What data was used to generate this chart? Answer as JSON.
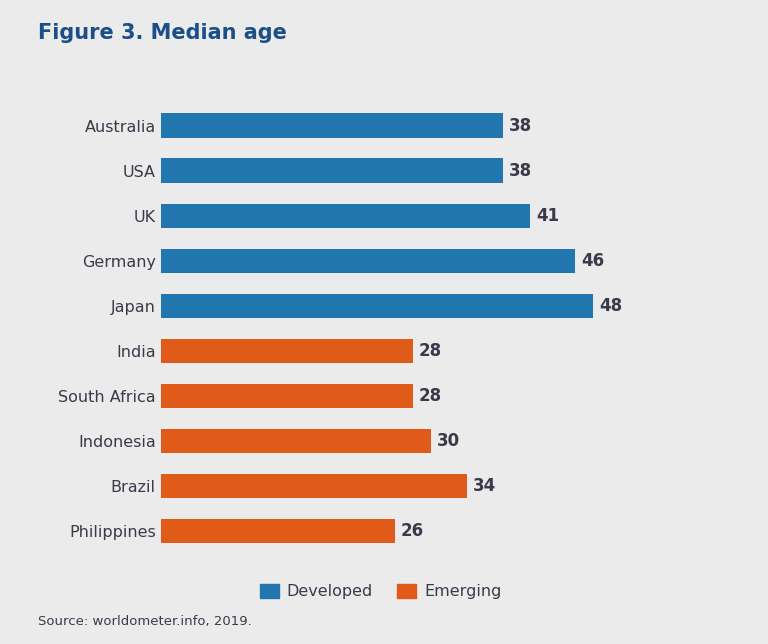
{
  "title": "Figure 3. Median age",
  "categories": [
    "Australia",
    "USA",
    "UK",
    "Germany",
    "Japan",
    "India",
    "South Africa",
    "Indonesia",
    "Brazil",
    "Philippines"
  ],
  "values": [
    38,
    38,
    41,
    46,
    48,
    28,
    28,
    30,
    34,
    26
  ],
  "colors": [
    "#2176AE",
    "#2176AE",
    "#2176AE",
    "#2176AE",
    "#2176AE",
    "#E05A1A",
    "#E05A1A",
    "#E05A1A",
    "#E05A1A",
    "#E05A1A"
  ],
  "legend_labels": [
    "Developed",
    "Emerging"
  ],
  "legend_colors": [
    "#2176AE",
    "#E05A1A"
  ],
  "source_text": "Source: worldometer.info, 2019.",
  "background_color": "#EBEBEB",
  "title_color": "#1B4F87",
  "label_color": "#3A3A4A",
  "value_color": "#3A3A4A",
  "bar_height": 0.55,
  "xlim": [
    0,
    58
  ],
  "title_fontsize": 15,
  "label_fontsize": 11.5,
  "value_fontsize": 12,
  "source_fontsize": 9.5,
  "legend_fontsize": 11.5
}
